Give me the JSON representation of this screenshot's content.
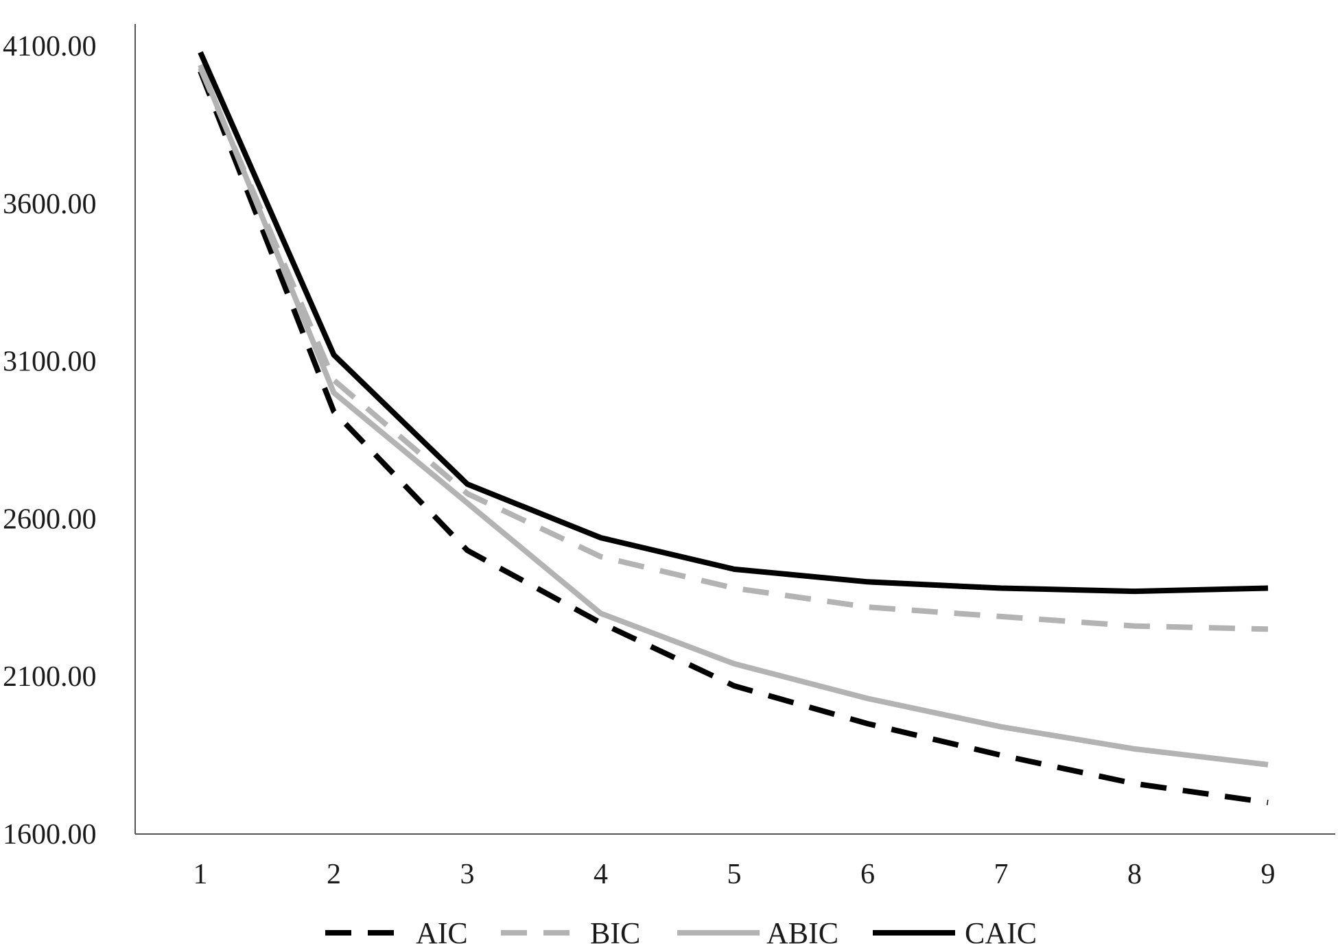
{
  "chart_data": {
    "type": "line",
    "title": "",
    "xlabel": "",
    "ylabel": "",
    "x": [
      1,
      2,
      3,
      4,
      5,
      6,
      7,
      8,
      9
    ],
    "ylim": [
      1600,
      4100
    ],
    "yticks": [
      1600,
      2100,
      2600,
      3100,
      3600,
      4100
    ],
    "ytick_labels": [
      "1600.00",
      "2100.00",
      "2600.00",
      "3100.00",
      "3600.00",
      "4100.00"
    ],
    "xtick_labels": [
      "1",
      "2",
      "3",
      "4",
      "5",
      "6",
      "7",
      "8",
      "9"
    ],
    "grid": false,
    "legend_position": "bottom",
    "series": [
      {
        "name": "AIC",
        "color": "#000000",
        "style": "dashed",
        "values": [
          4020,
          2940,
          2500,
          2270,
          2070,
          1950,
          1850,
          1760,
          1700
        ]
      },
      {
        "name": "BIC",
        "color": "#b3b3b3",
        "style": "dashed",
        "values": [
          4030,
          3040,
          2680,
          2480,
          2380,
          2320,
          2290,
          2260,
          2250
        ]
      },
      {
        "name": "ABIC",
        "color": "#b3b3b3",
        "style": "solid",
        "values": [
          4040,
          3000,
          2650,
          2300,
          2140,
          2030,
          1940,
          1870,
          1820
        ]
      },
      {
        "name": "CAIC",
        "color": "#000000",
        "style": "solid",
        "values": [
          4080,
          3120,
          2710,
          2540,
          2440,
          2400,
          2380,
          2370,
          2380
        ]
      }
    ]
  }
}
